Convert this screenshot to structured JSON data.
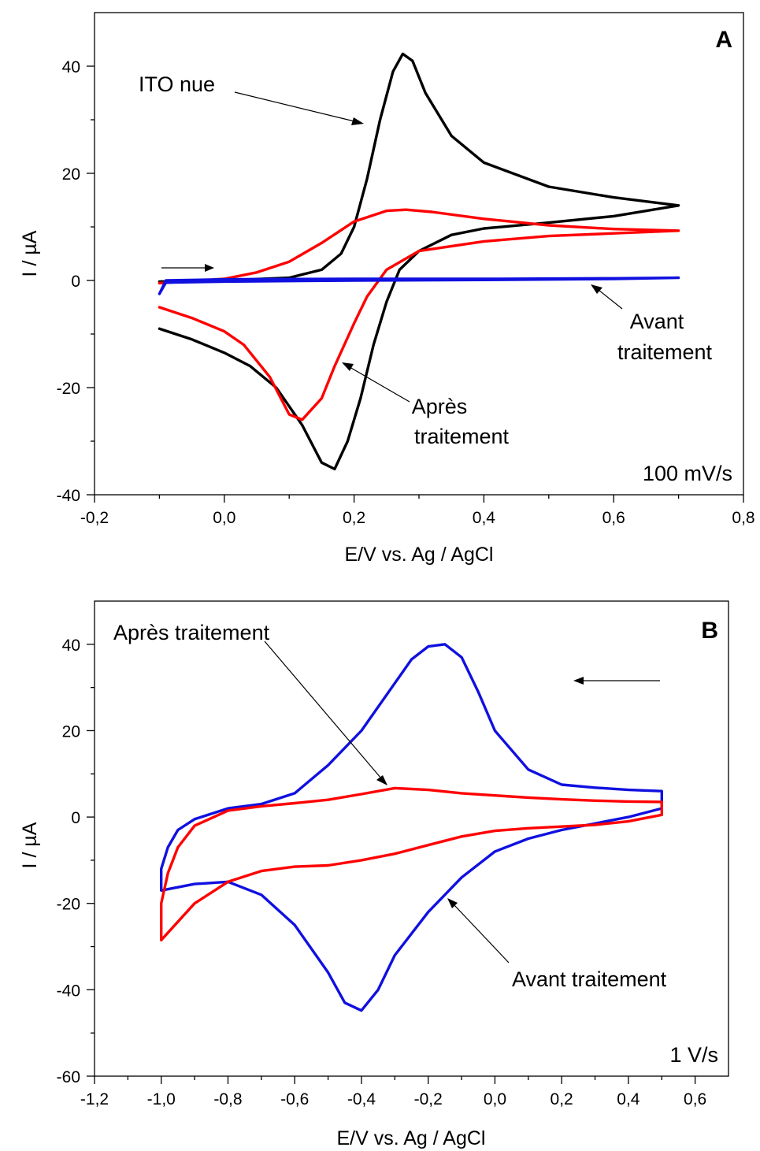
{
  "colors": {
    "black": "#000000",
    "red": "#ff0000",
    "blue": "#1010e0"
  },
  "chart_data": [
    {
      "type": "line",
      "panel_label": "A",
      "xlabel": "E/V vs. Ag / AgCl",
      "ylabel": "I / µA",
      "xlim": [
        -0.2,
        0.8
      ],
      "ylim": [
        -40,
        50
      ],
      "x_ticks": [
        "-0,2",
        "0,0",
        "0,2",
        "0,4",
        "0,6",
        "0,8"
      ],
      "y_ticks": [
        "-40",
        "-20",
        "0",
        "20",
        "40"
      ],
      "scan_rate_label": "100 mV/s",
      "series": [
        {
          "name": "ITO nue",
          "color_key": "black",
          "x": [
            -0.1,
            0.0,
            0.1,
            0.15,
            0.18,
            0.2,
            0.22,
            0.24,
            0.26,
            0.275,
            0.29,
            0.31,
            0.35,
            0.4,
            0.5,
            0.6,
            0.7,
            0.6,
            0.5,
            0.4,
            0.35,
            0.3,
            0.27,
            0.25,
            0.23,
            0.21,
            0.19,
            0.17,
            0.15,
            0.12,
            0.08,
            0.04,
            0.0,
            -0.05,
            -0.1
          ],
          "y": [
            -0.2,
            0.0,
            0.5,
            2.0,
            5.0,
            10.0,
            19.0,
            30.0,
            39.0,
            42.3,
            41.0,
            35.0,
            27.0,
            22.0,
            17.5,
            15.5,
            14.0,
            12.0,
            10.8,
            9.7,
            8.5,
            5.5,
            2.0,
            -4.0,
            -12.0,
            -22.0,
            -30.0,
            -35.2,
            -34.0,
            -27.0,
            -20.0,
            -16.0,
            -13.5,
            -11.0,
            -9.0
          ]
        },
        {
          "name": "Après traitement",
          "color_key": "red",
          "x": [
            -0.1,
            0.0,
            0.05,
            0.1,
            0.15,
            0.2,
            0.25,
            0.28,
            0.32,
            0.4,
            0.5,
            0.6,
            0.7,
            0.6,
            0.5,
            0.4,
            0.3,
            0.25,
            0.22,
            0.2,
            0.17,
            0.15,
            0.12,
            0.1,
            0.07,
            0.03,
            0.0,
            -0.05,
            -0.1
          ],
          "y": [
            -0.5,
            0.3,
            1.5,
            3.5,
            7.0,
            11.0,
            13.0,
            13.2,
            12.8,
            11.5,
            10.3,
            9.6,
            9.3,
            8.8,
            8.3,
            7.3,
            5.5,
            2.0,
            -3.0,
            -8.0,
            -16.0,
            -22.0,
            -26.0,
            -25.0,
            -18.0,
            -12.0,
            -9.5,
            -7.0,
            -5.0
          ]
        },
        {
          "name": "Avant traitement",
          "color_key": "blue",
          "x": [
            -0.1,
            -0.09,
            0.0,
            0.2,
            0.4,
            0.6,
            0.7,
            0.6,
            0.4,
            0.2,
            0.0,
            -0.09,
            -0.1
          ],
          "y": [
            -2.5,
            0.0,
            0.2,
            0.3,
            0.3,
            0.4,
            0.5,
            0.3,
            0.1,
            0.0,
            -0.2,
            -0.4,
            -2.5
          ]
        }
      ],
      "annotations": [
        {
          "lines": [
            "ITO nue"
          ]
        },
        {
          "lines": [
            "Avant",
            "traitement"
          ]
        },
        {
          "lines": [
            "Après",
            "traitement"
          ]
        }
      ]
    },
    {
      "type": "line",
      "panel_label": "B",
      "xlabel": "E/V vs. Ag / AgCl",
      "ylabel": "I / µA",
      "xlim": [
        -1.2,
        0.7
      ],
      "ylim": [
        -60,
        50
      ],
      "x_ticks": [
        "-1,2",
        "-1,0",
        "-0,8",
        "-0,6",
        "-0,4",
        "-0,2",
        "0,0",
        "0,2",
        "0,4",
        "0,6"
      ],
      "y_ticks": [
        "-60",
        "-40",
        "-20",
        "0",
        "20",
        "40"
      ],
      "scan_rate_label": "1 V/s",
      "series": [
        {
          "name": "Avant traitement",
          "color_key": "blue",
          "x": [
            0.5,
            0.4,
            0.3,
            0.2,
            0.1,
            0.0,
            -0.1,
            -0.2,
            -0.3,
            -0.35,
            -0.4,
            -0.45,
            -0.5,
            -0.6,
            -0.7,
            -0.8,
            -0.9,
            -1.0,
            -1.0,
            -0.98,
            -0.95,
            -0.9,
            -0.8,
            -0.7,
            -0.6,
            -0.5,
            -0.4,
            -0.3,
            -0.25,
            -0.2,
            -0.15,
            -0.1,
            -0.05,
            0.0,
            0.1,
            0.2,
            0.3,
            0.4,
            0.5,
            0.5
          ],
          "y": [
            2.0,
            0.0,
            -1.5,
            -3.0,
            -5.0,
            -8.0,
            -14.0,
            -22.0,
            -32.0,
            -40.0,
            -44.8,
            -43.0,
            -36.0,
            -25.0,
            -18.0,
            -15.0,
            -15.5,
            -17.0,
            -12.0,
            -7.0,
            -3.0,
            -0.5,
            2.0,
            3.0,
            5.5,
            12.0,
            20.0,
            31.0,
            36.5,
            39.5,
            40.0,
            37.0,
            29.0,
            20.0,
            11.0,
            7.5,
            6.8,
            6.3,
            6.0,
            2.0
          ]
        },
        {
          "name": "Après traitement",
          "color_key": "red",
          "x": [
            0.5,
            0.4,
            0.3,
            0.2,
            0.1,
            0.0,
            -0.1,
            -0.2,
            -0.3,
            -0.4,
            -0.5,
            -0.6,
            -0.7,
            -0.8,
            -0.9,
            -1.0,
            -1.0,
            -0.98,
            -0.95,
            -0.9,
            -0.8,
            -0.7,
            -0.6,
            -0.5,
            -0.4,
            -0.3,
            -0.2,
            -0.1,
            0.0,
            0.1,
            0.2,
            0.3,
            0.4,
            0.5,
            0.5
          ],
          "y": [
            0.5,
            -1.0,
            -1.8,
            -2.2,
            -2.6,
            -3.2,
            -4.5,
            -6.5,
            -8.5,
            -10.0,
            -11.2,
            -11.5,
            -12.5,
            -15.0,
            -20.0,
            -28.5,
            -20.0,
            -13.0,
            -7.0,
            -2.0,
            1.5,
            2.5,
            3.2,
            4.0,
            5.3,
            6.7,
            6.3,
            5.5,
            5.0,
            4.5,
            4.1,
            3.8,
            3.6,
            3.5,
            0.5
          ]
        }
      ],
      "annotations": [
        {
          "lines": [
            "Après traitement"
          ]
        },
        {
          "lines": [
            "Avant traitement"
          ]
        }
      ]
    }
  ]
}
